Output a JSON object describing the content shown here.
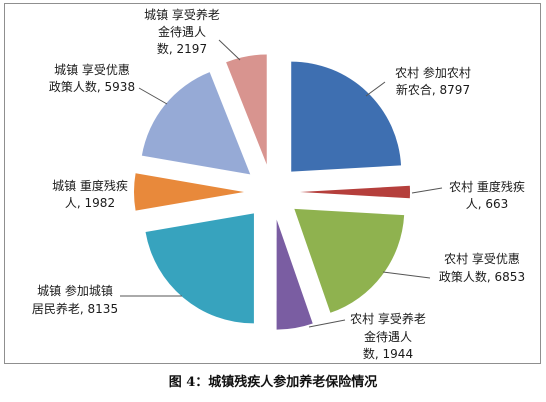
{
  "chart_data": {
    "type": "pie",
    "exploded": true,
    "legend": "none",
    "slices": [
      {
        "label": [
          "农村 参加农村",
          "新农合, 8797"
        ],
        "value": 8797,
        "color": "#3E6FB1"
      },
      {
        "label": [
          "农村 重度残疾",
          "人, 663"
        ],
        "value": 663,
        "color": "#B53F3C"
      },
      {
        "label": [
          "农村 享受优惠",
          "政策人数, 6853"
        ],
        "value": 6853,
        "color": "#8FB24F"
      },
      {
        "label": [
          "农村 享受养老",
          "金待遇人",
          "数, 1944"
        ],
        "value": 1944,
        "color": "#7A5DA2"
      },
      {
        "label": [
          "城镇 参加城镇",
          "居民养老, 8135"
        ],
        "value": 8135,
        "color": "#37A3BE"
      },
      {
        "label": [
          "城镇 重度残疾",
          "人, 1982"
        ],
        "value": 1982,
        "color": "#E8893B"
      },
      {
        "label": [
          "城镇 享受优惠",
          "政策人数, 5938"
        ],
        "value": 5938,
        "color": "#96AAD6"
      },
      {
        "label": [
          "城镇 享受养老",
          "金待遇人",
          "数, 2197"
        ],
        "value": 2197,
        "color": "#D8948F"
      }
    ]
  },
  "figure_caption": "图 4：城镇残疾人参加养老保险情况"
}
